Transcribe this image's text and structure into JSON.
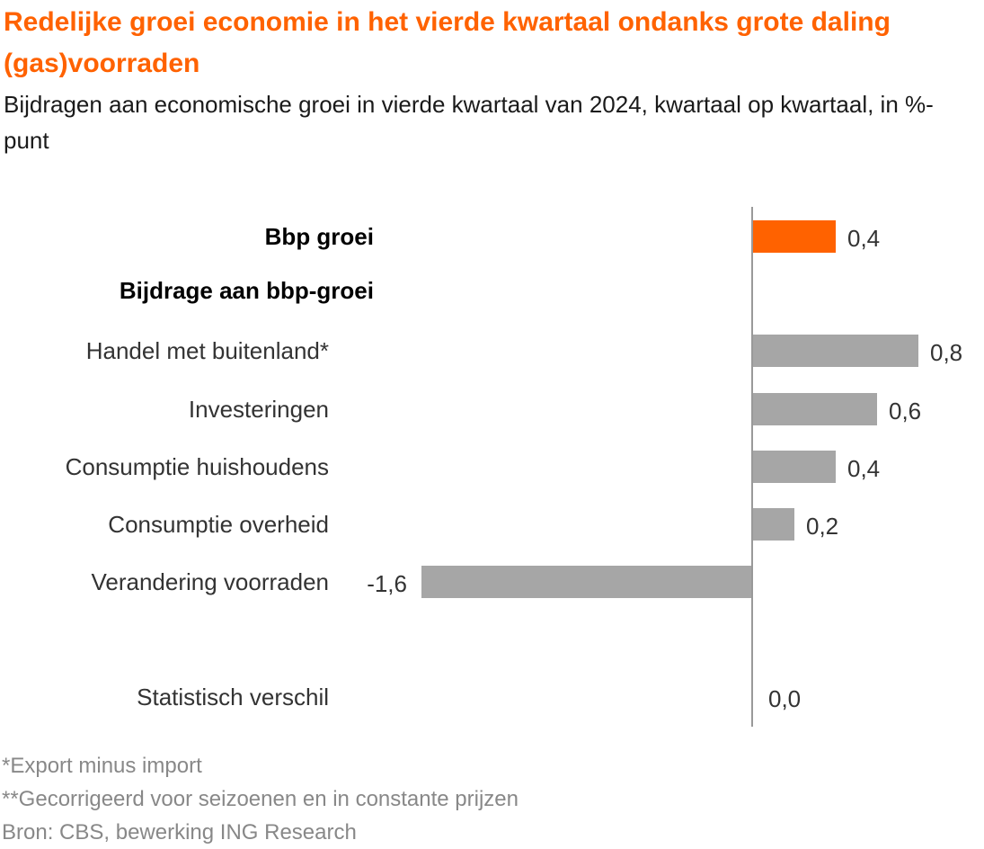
{
  "chart_data": {
    "type": "bar",
    "orientation": "horizontal",
    "title": "Redelijke groei economie in het vierde kwartaal ondanks grote daling  (gas)voorraden",
    "subtitle": "Bijdragen aan economische groei in vierde kwartaal van 2024, kwartaal op kwartaal, in %-punt",
    "categories": [
      "Bbp groei",
      "Bijdrage aan bbp-groei",
      "Handel met buitenland*",
      "Investeringen",
      "Consumptie huishoudens",
      "Consumptie overheid",
      "Verandering voorraden",
      "Statistisch verschil"
    ],
    "values": [
      0.4,
      null,
      0.8,
      0.6,
      0.4,
      0.2,
      -1.6,
      0.0
    ],
    "value_labels": [
      "0,4",
      "",
      "0,8",
      "0,6",
      "0,4",
      "0,2",
      "-1,6",
      "0,0"
    ],
    "bold_categories": [
      "Bbp groei",
      "Bijdrage aan bbp-groei"
    ],
    "highlight_category": "Bbp groei",
    "colors": {
      "highlight": "#ff6200",
      "default": "#a6a6a6",
      "axis": "#999999",
      "title": "#ff6200"
    },
    "xlim": [
      -1.6,
      0.8
    ],
    "grid": false,
    "legend": "none"
  },
  "footnotes": [
    "*Export minus import",
    "**Gecorrigeerd voor seizoenen en in constante prijzen",
    "Bron: CBS, bewerking ING Research"
  ]
}
